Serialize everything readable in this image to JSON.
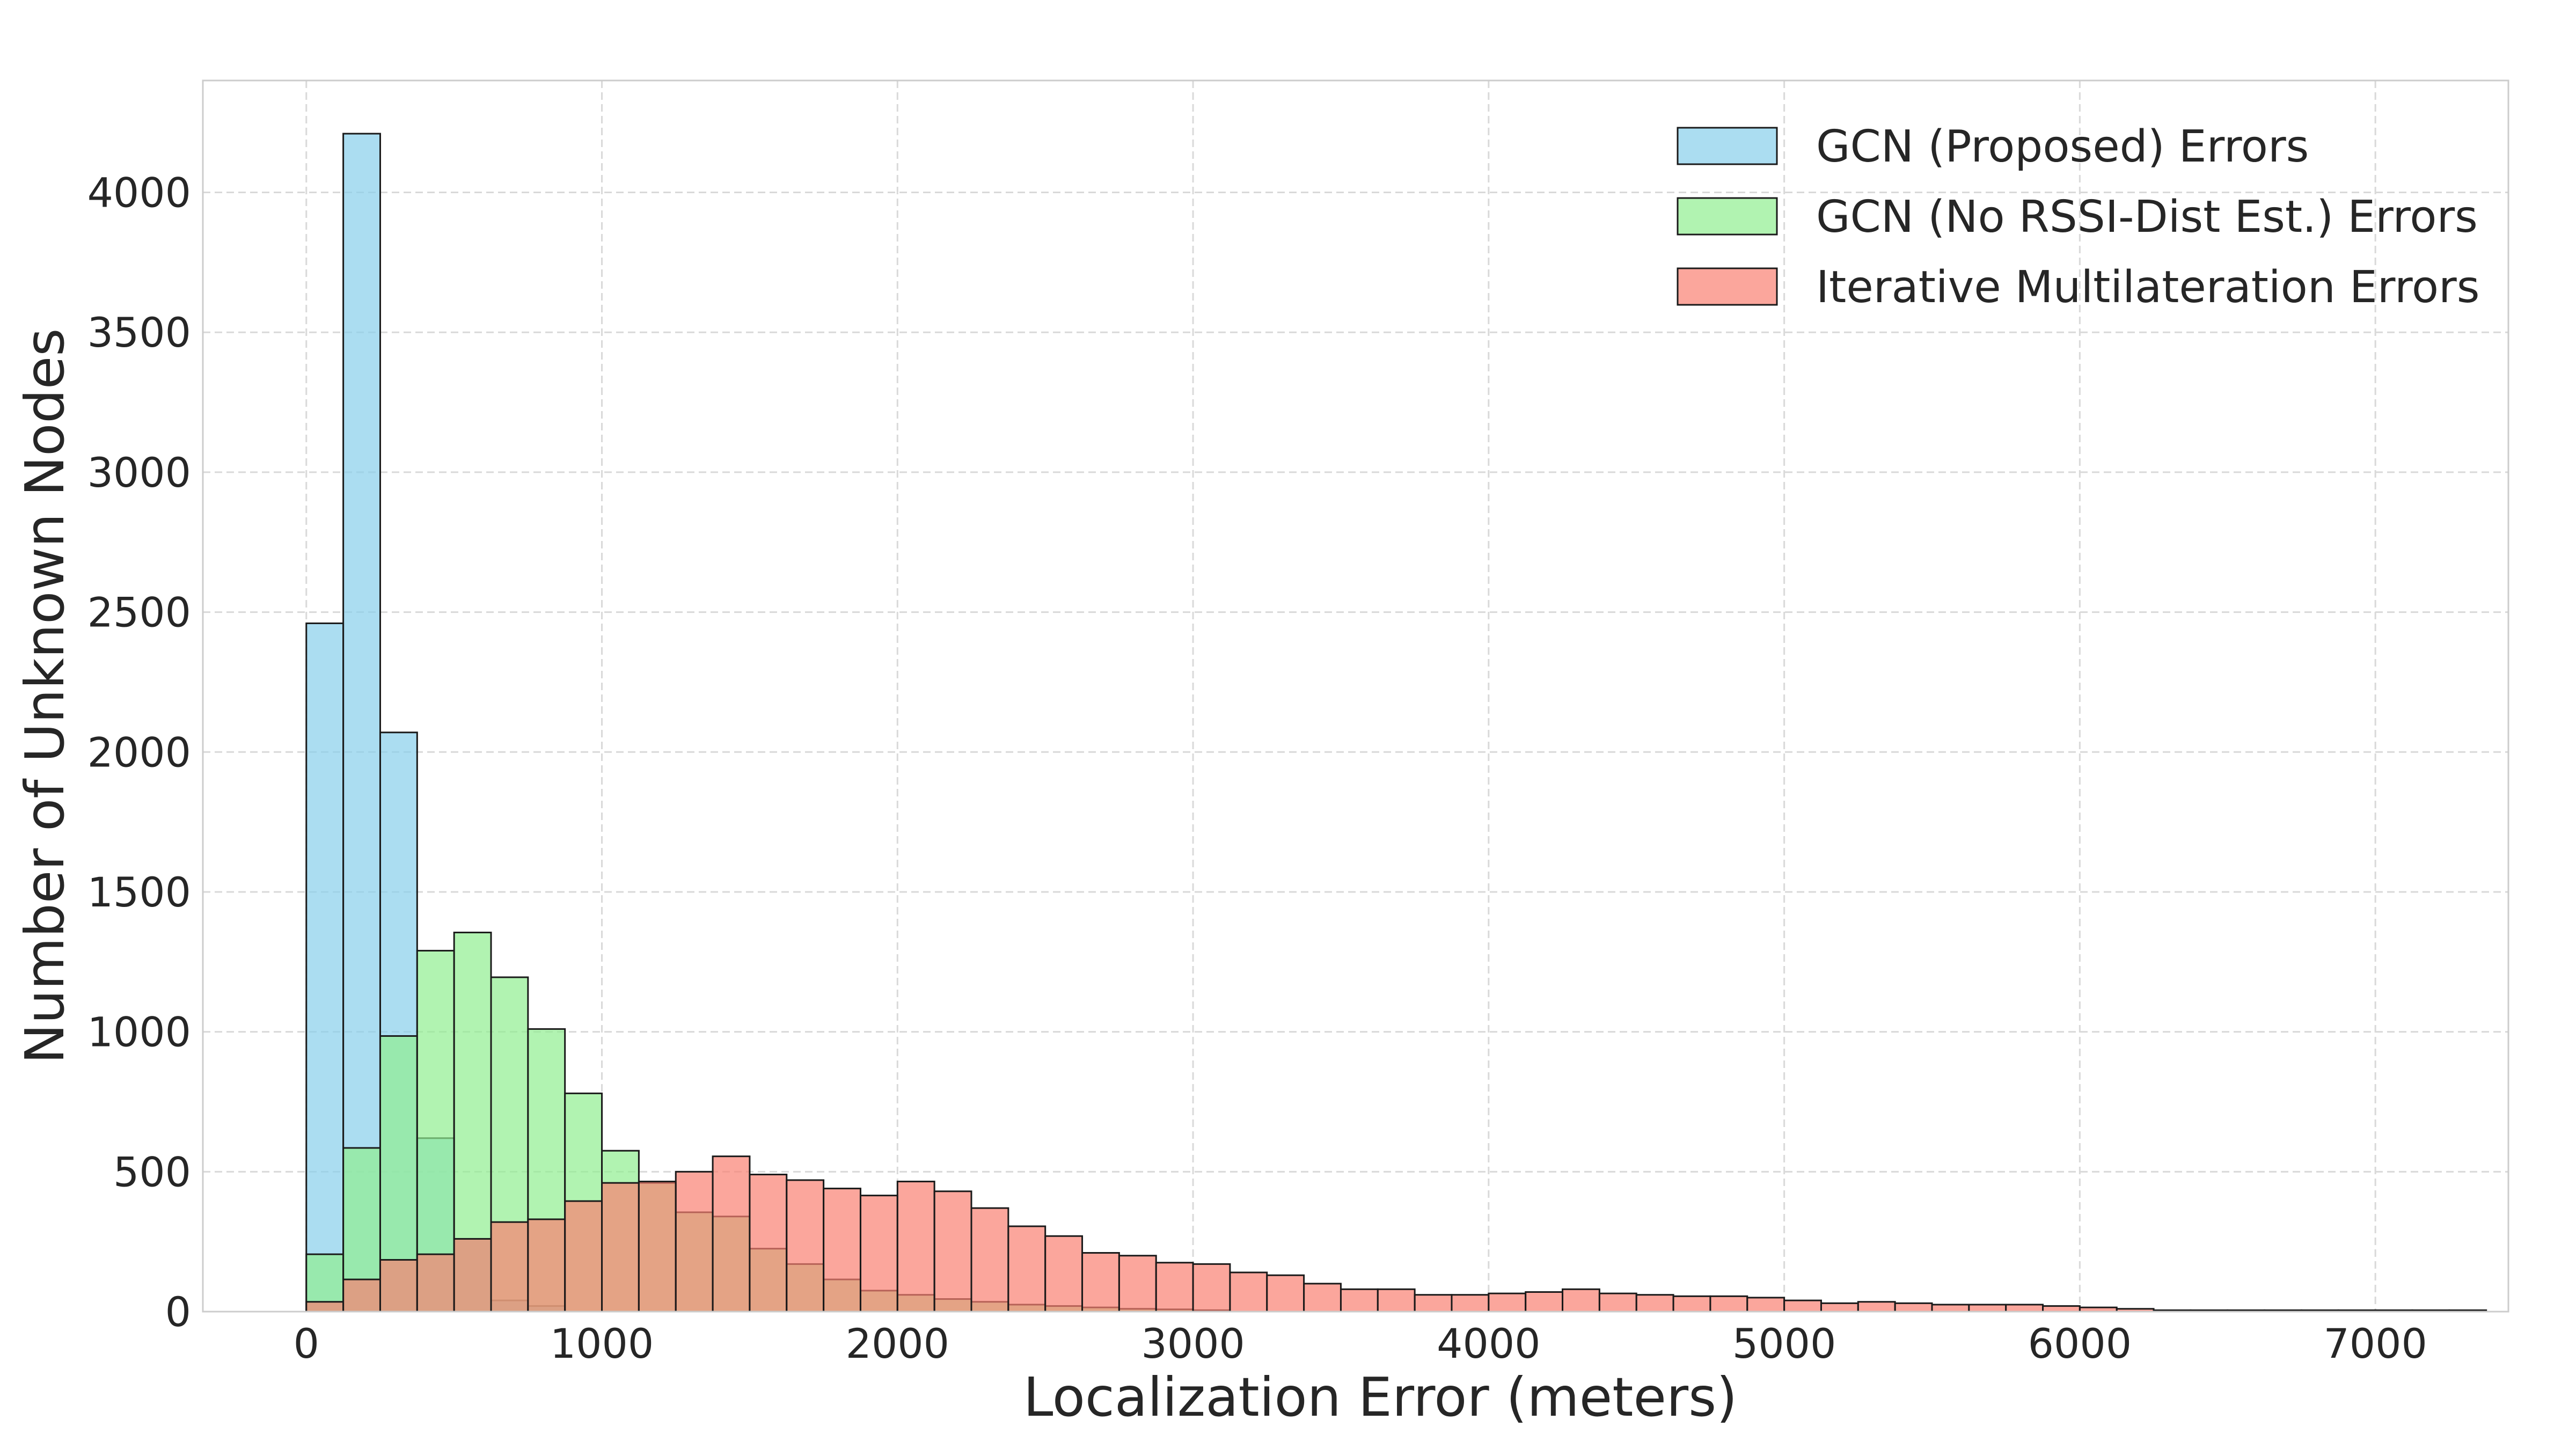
{
  "chart_data": {
    "type": "bar",
    "subtype": "overlapping-histogram",
    "xlabel": "Localization Error (meters)",
    "ylabel": "Number of Unknown Nodes",
    "xlim": [
      -350,
      7450
    ],
    "ylim": [
      0,
      4400
    ],
    "xticks": [
      0,
      1000,
      2000,
      3000,
      4000,
      5000,
      6000,
      7000
    ],
    "yticks": [
      0,
      500,
      1000,
      1500,
      2000,
      2500,
      3000,
      3500,
      4000
    ],
    "grid": true,
    "legend_position": "top-right",
    "bin_width": 125,
    "bin_start": 0,
    "series": [
      {
        "name": "GCN (Proposed) Errors",
        "color": "#87ceeb",
        "opacity": 0.7,
        "values": [
          2460,
          4210,
          2070,
          620,
          260,
          40,
          20
        ]
      },
      {
        "name": "GCN (No RSSI-Dist Est.) Errors",
        "color": "#90ee90",
        "opacity": 0.7,
        "values": [
          205,
          585,
          985,
          1290,
          1355,
          1195,
          1010,
          780,
          575,
          460,
          355,
          340,
          225,
          170,
          115,
          75,
          60,
          45,
          35,
          25,
          20,
          15,
          10,
          8,
          5
        ]
      },
      {
        "name": "Iterative Multilateration Errors",
        "color": "#fa8072",
        "opacity": 0.7,
        "values": [
          35,
          115,
          185,
          205,
          260,
          320,
          330,
          395,
          460,
          465,
          500,
          555,
          490,
          470,
          440,
          415,
          465,
          430,
          370,
          305,
          270,
          210,
          200,
          175,
          170,
          140,
          130,
          100,
          80,
          80,
          60,
          60,
          65,
          70,
          80,
          65,
          60,
          55,
          55,
          50,
          40,
          30,
          35,
          30,
          25,
          25,
          25,
          20,
          15,
          10,
          5,
          5,
          5,
          5,
          5,
          5,
          5,
          5,
          5
        ]
      }
    ]
  }
}
